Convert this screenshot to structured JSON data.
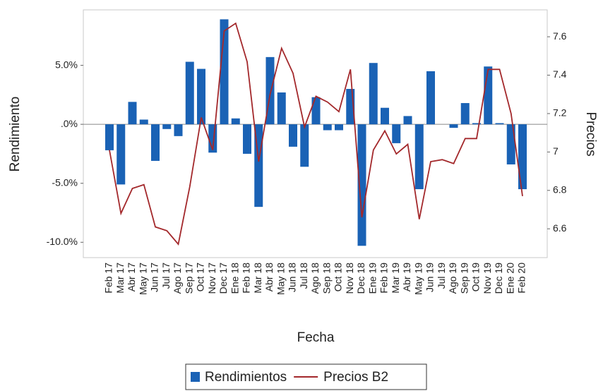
{
  "chart_data": {
    "type": "bar",
    "xlabel": "Fecha",
    "ylabel": "Rendimiento",
    "y2label": "Precios",
    "categories": [
      "Feb 17",
      "Mar 17",
      "Abr 17",
      "May 17",
      "Jun 17",
      "Jul 17",
      "Ago 17",
      "Sep 17",
      "Oct 17",
      "Nov 17",
      "Dec 17",
      "Ene 18",
      "Feb 18",
      "Mar 18",
      "Abr 18",
      "May 18",
      "Jun 18",
      "Jul 18",
      "Ago 18",
      "Sep 18",
      "Oct 18",
      "Nov 18",
      "Dec 18",
      "Ene 19",
      "Feb 19",
      "Mar 19",
      "Abr 19",
      "May 19",
      "Jun 19",
      "Jul 19",
      "Ago 19",
      "Sep 19",
      "Oct 19",
      "Nov 19",
      "Dec 19",
      "Ene 20",
      "Feb 20"
    ],
    "series": [
      {
        "name": "Rendimientos",
        "type": "bar",
        "color": "#1a62b5",
        "values": [
          -2.2,
          -5.1,
          1.9,
          0.4,
          -3.1,
          -0.4,
          -1.0,
          5.3,
          4.7,
          -2.4,
          8.9,
          0.5,
          -2.5,
          -7.0,
          5.7,
          2.7,
          -1.9,
          -3.6,
          2.3,
          -0.5,
          -0.5,
          3.0,
          -10.3,
          5.2,
          1.4,
          -1.6,
          0.7,
          -5.5,
          4.5,
          0.0,
          -0.3,
          1.8,
          0.1,
          4.9,
          0.1,
          -3.4,
          -5.5
        ]
      },
      {
        "name": "Precios B2",
        "type": "line",
        "axis": "y2",
        "color": "#a3282b",
        "values": [
          7.01,
          6.68,
          6.81,
          6.83,
          6.61,
          6.59,
          6.52,
          6.82,
          7.18,
          7.01,
          7.63,
          7.67,
          7.47,
          6.95,
          7.3,
          7.54,
          7.41,
          7.13,
          7.29,
          7.26,
          7.21,
          7.43,
          6.66,
          7.01,
          7.11,
          6.99,
          7.04,
          6.65,
          6.95,
          6.96,
          6.94,
          7.07,
          7.07,
          7.43,
          7.43,
          7.2,
          6.77
        ]
      }
    ],
    "ylim": [
      -11.3,
      9.7
    ],
    "yticks": [
      {
        "value": -10,
        "label": "-10.0%"
      },
      {
        "value": -5,
        "label": "-5.0%"
      },
      {
        "value": 0,
        "label": ".0%"
      },
      {
        "value": 5,
        "label": "5.0%"
      }
    ],
    "y2lim": [
      6.45,
      7.74
    ],
    "y2ticks": [
      6.6,
      6.8,
      7.0,
      7.2,
      7.4,
      7.6
    ],
    "legend": "bottom"
  }
}
